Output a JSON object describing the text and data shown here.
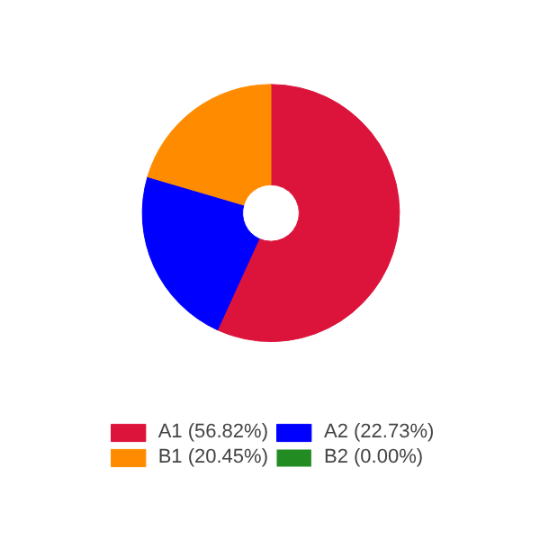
{
  "chart_data": {
    "type": "donut",
    "categories": [
      "A1 (56.82%)",
      "A2 (22.73%)",
      "B1 (20.45%)",
      "B2 (0.00%)"
    ],
    "values": [
      56.82,
      22.73,
      20.45,
      0.0
    ],
    "colors": [
      "#dc143c",
      "#0000ff",
      "#ff8c00",
      "#228b22"
    ],
    "legend": "bottom"
  }
}
